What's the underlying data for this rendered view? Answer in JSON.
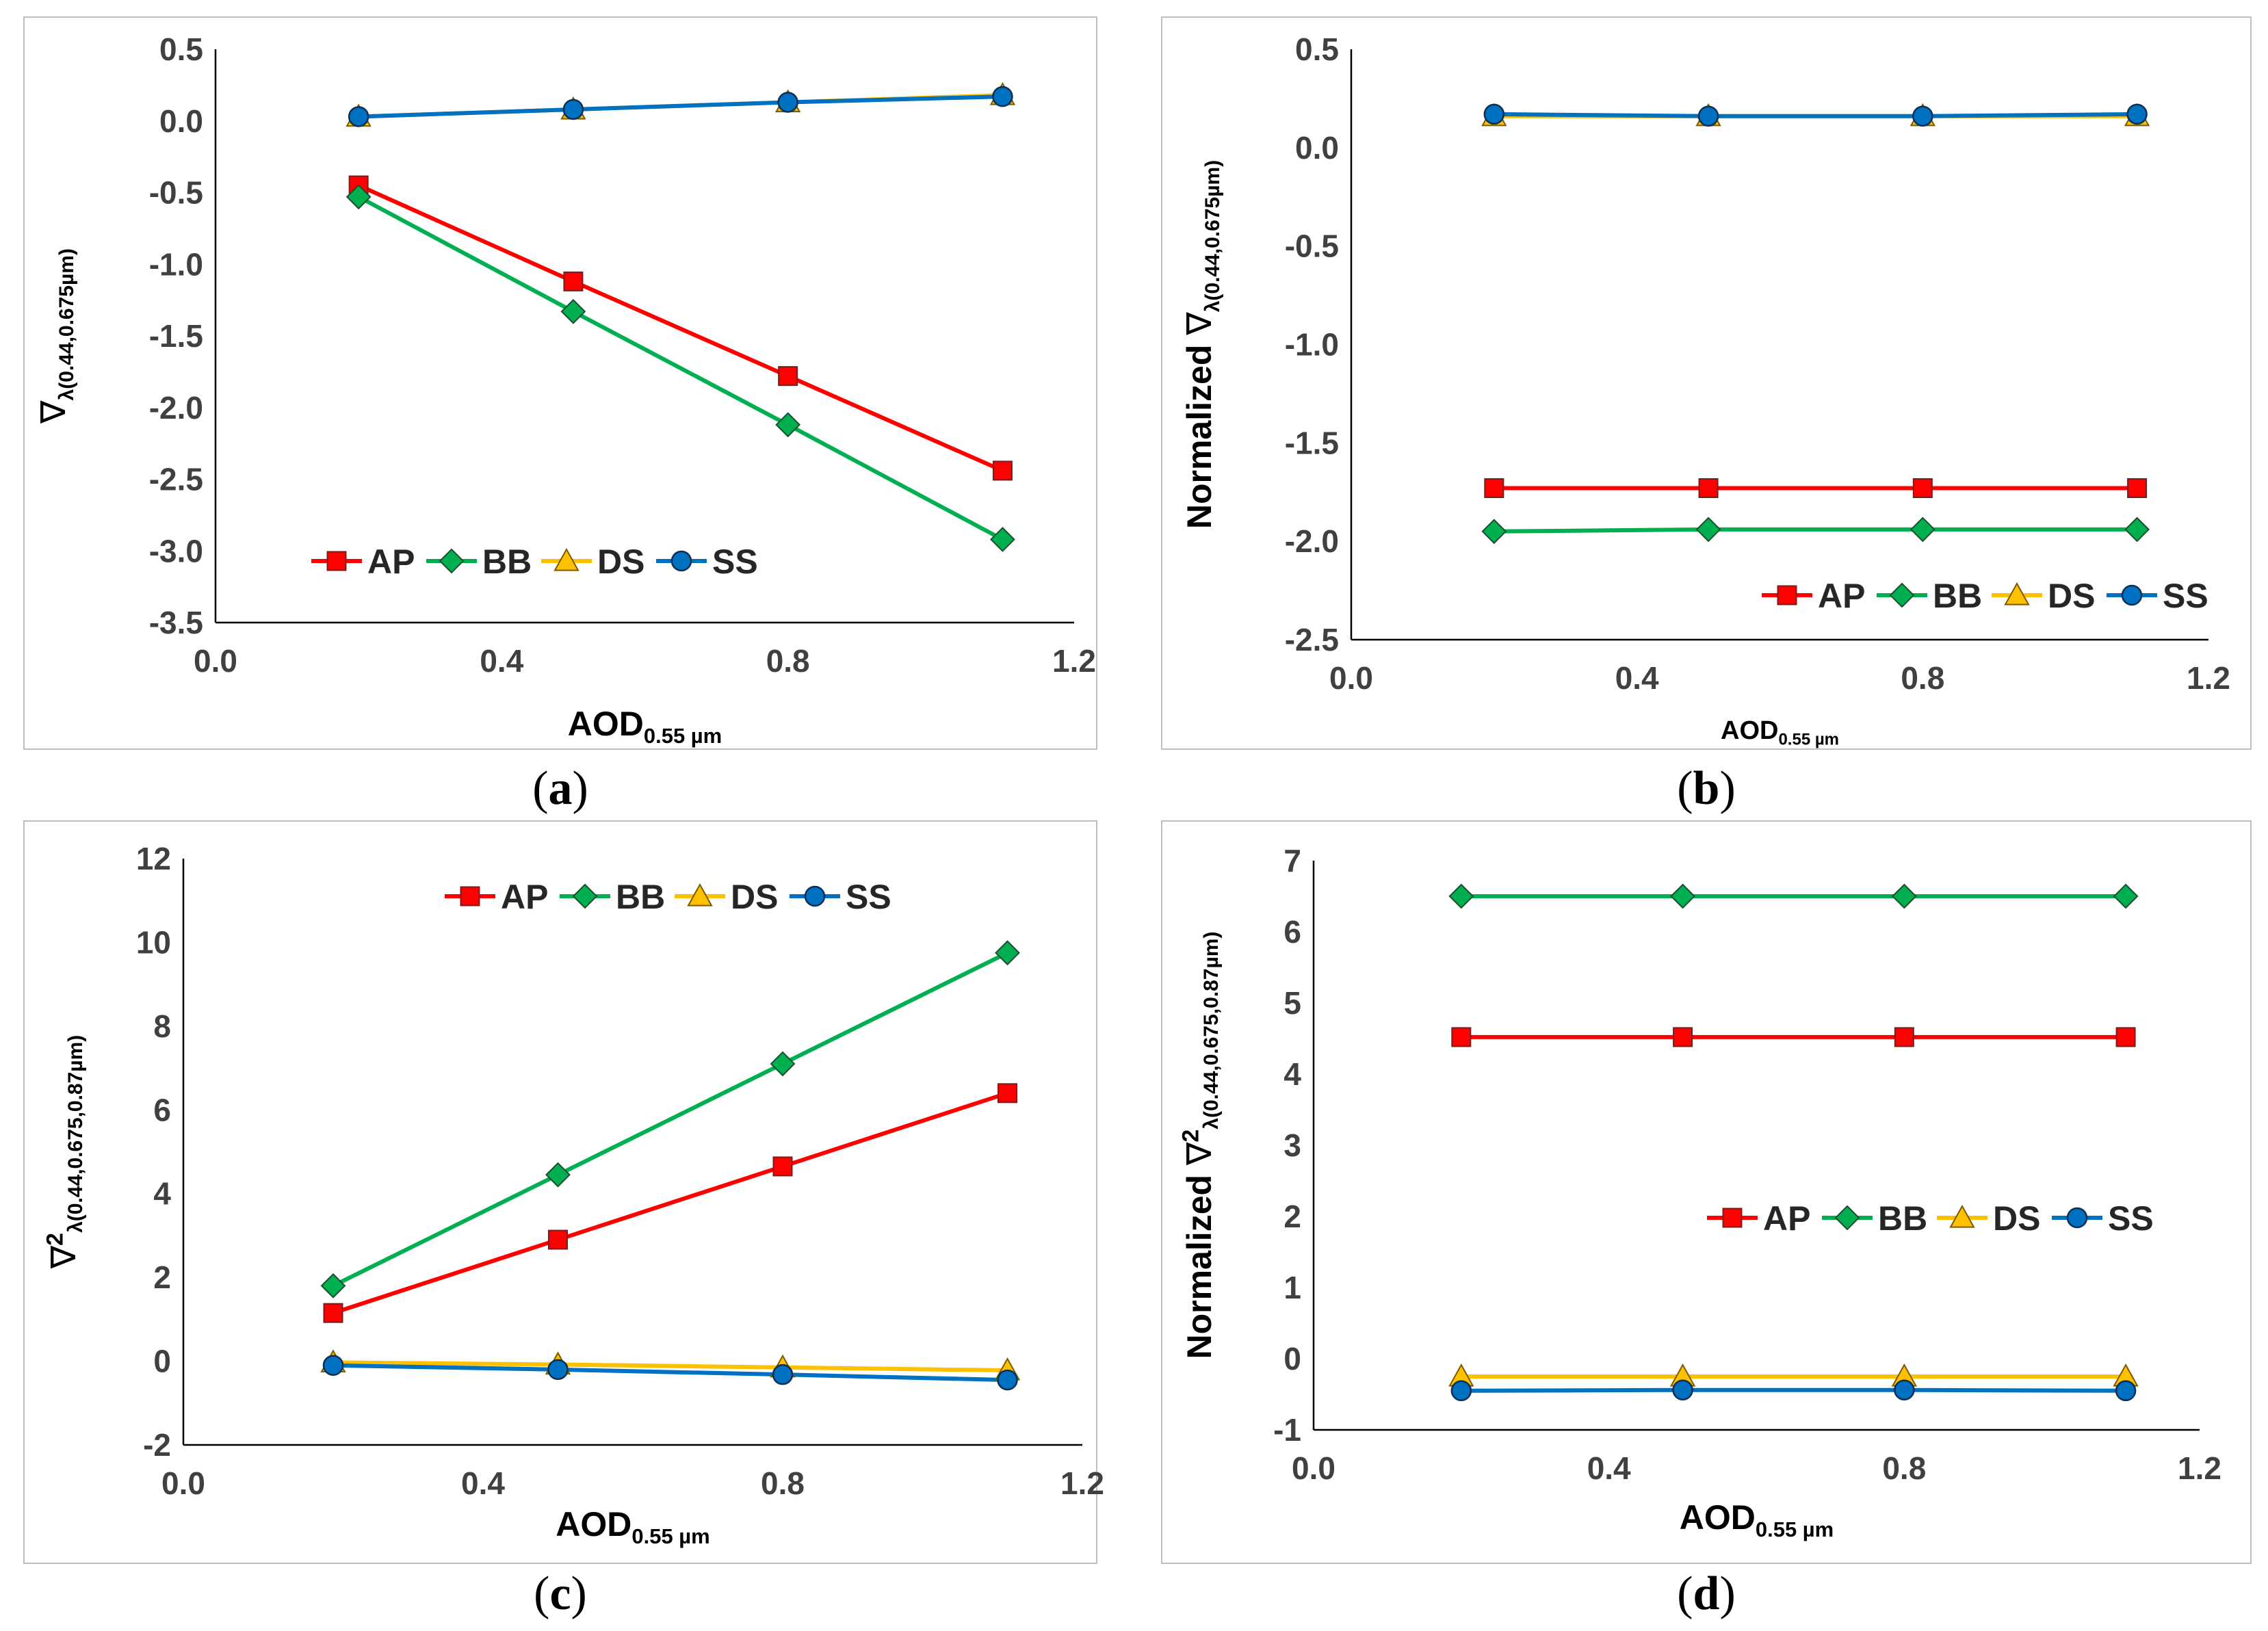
{
  "figure_captions": [
    "a",
    "b",
    "c",
    "d"
  ],
  "chart_data": [
    {
      "id": "a",
      "type": "line",
      "x": [
        0.2,
        0.5,
        0.8,
        1.1
      ],
      "xlim": [
        0.0,
        1.2
      ],
      "xticks": [
        "0.0",
        "0.4",
        "0.8",
        "1.2"
      ],
      "xtick_values": [
        0.0,
        0.4,
        0.8,
        1.2
      ],
      "ylim": [
        -3.5,
        0.5
      ],
      "yticks": [
        "0.5",
        "0.0",
        "-0.5",
        "-1.0",
        "-1.5",
        "-2.0",
        "-2.5",
        "-3.0",
        "-3.5"
      ],
      "ytick_values": [
        0.5,
        0.0,
        -0.5,
        -1.0,
        -1.5,
        -2.0,
        -2.5,
        -3.0,
        -3.5
      ],
      "xlabel": {
        "prefix": "",
        "main": "AOD",
        "sub": "0.55 µm"
      },
      "ylabel": {
        "prefix": "",
        "main": "∇",
        "sup": "",
        "sub": "λ(0.44,0.675µm)"
      },
      "legend": "lower-left",
      "series": [
        {
          "name": "AP",
          "color": "#FF0000",
          "marker": "square",
          "values": [
            -0.45,
            -1.12,
            -1.78,
            -2.44
          ]
        },
        {
          "name": "BB",
          "color": "#00B050",
          "marker": "diamond",
          "values": [
            -0.53,
            -1.33,
            -2.12,
            -2.92
          ]
        },
        {
          "name": "DS",
          "color": "#FFC000",
          "marker": "triangle",
          "values": [
            0.03,
            0.08,
            0.13,
            0.18
          ]
        },
        {
          "name": "SS",
          "color": "#0070C0",
          "marker": "circle",
          "values": [
            0.03,
            0.08,
            0.13,
            0.17
          ]
        }
      ]
    },
    {
      "id": "b",
      "type": "line",
      "x": [
        0.2,
        0.5,
        0.8,
        1.1
      ],
      "xlim": [
        0.0,
        1.2
      ],
      "xticks": [
        "0.0",
        "0.4",
        "0.8",
        "1.2"
      ],
      "xtick_values": [
        0.0,
        0.4,
        0.8,
        1.2
      ],
      "ylim": [
        -2.5,
        0.5
      ],
      "yticks": [
        "0.5",
        "0.0",
        "-0.5",
        "-1.0",
        "-1.5",
        "-2.0",
        "-2.5"
      ],
      "ytick_values": [
        0.5,
        0.0,
        -0.5,
        -1.0,
        -1.5,
        -2.0,
        -2.5
      ],
      "xlabel": {
        "prefix": "",
        "main": "AOD",
        "sub": "0.55 µm"
      },
      "ylabel": {
        "prefix": "Normalized ",
        "main": "∇",
        "sup": "",
        "sub": "λ(0.44,0.675µm)"
      },
      "legend": "bottom-right",
      "series": [
        {
          "name": "AP",
          "color": "#FF0000",
          "marker": "square",
          "values": [
            -1.73,
            -1.73,
            -1.73,
            -1.73
          ]
        },
        {
          "name": "BB",
          "color": "#00B050",
          "marker": "diamond",
          "values": [
            -1.95,
            -1.94,
            -1.94,
            -1.94
          ]
        },
        {
          "name": "DS",
          "color": "#FFC000",
          "marker": "triangle",
          "values": [
            0.16,
            0.16,
            0.16,
            0.16
          ]
        },
        {
          "name": "SS",
          "color": "#0070C0",
          "marker": "circle",
          "values": [
            0.17,
            0.16,
            0.16,
            0.17
          ]
        }
      ]
    },
    {
      "id": "c",
      "type": "line",
      "x": [
        0.2,
        0.5,
        0.8,
        1.1
      ],
      "xlim": [
        0.0,
        1.2
      ],
      "xticks": [
        "0.0",
        "0.4",
        "0.8",
        "1.2"
      ],
      "xtick_values": [
        0.0,
        0.4,
        0.8,
        1.2
      ],
      "ylim": [
        -2,
        12
      ],
      "yticks": [
        "12",
        "10",
        "8",
        "6",
        "4",
        "2",
        "0",
        "-2"
      ],
      "ytick_values": [
        12,
        10,
        8,
        6,
        4,
        2,
        0,
        -2
      ],
      "xlabel": {
        "prefix": "",
        "main": "AOD",
        "sub": "0.55 µm"
      },
      "ylabel": {
        "prefix": "",
        "main": "∇",
        "sup": "2",
        "sub": "λ(0.44,0.675,0.87µm)"
      },
      "legend": "top-center",
      "series": [
        {
          "name": "AP",
          "color": "#FF0000",
          "marker": "square",
          "values": [
            1.15,
            2.9,
            4.65,
            6.4
          ]
        },
        {
          "name": "BB",
          "color": "#00B050",
          "marker": "diamond",
          "values": [
            1.8,
            4.45,
            7.1,
            9.75
          ]
        },
        {
          "name": "DS",
          "color": "#FFC000",
          "marker": "triangle",
          "values": [
            -0.03,
            -0.08,
            -0.15,
            -0.22
          ]
        },
        {
          "name": "SS",
          "color": "#0070C0",
          "marker": "circle",
          "values": [
            -0.1,
            -0.2,
            -0.32,
            -0.45
          ]
        }
      ]
    },
    {
      "id": "d",
      "type": "line",
      "x": [
        0.2,
        0.5,
        0.8,
        1.1
      ],
      "xlim": [
        0.0,
        1.2
      ],
      "xticks": [
        "0.0",
        "0.4",
        "0.8",
        "1.2"
      ],
      "xtick_values": [
        0.0,
        0.4,
        0.8,
        1.2
      ],
      "ylim": [
        -1,
        7
      ],
      "yticks": [
        "7",
        "6",
        "5",
        "4",
        "3",
        "2",
        "1",
        "0",
        "-1"
      ],
      "ytick_values": [
        7,
        6,
        5,
        4,
        3,
        2,
        1,
        0,
        -1
      ],
      "xlabel": {
        "prefix": "",
        "main": "AOD",
        "sub": "0.55 µm"
      },
      "ylabel": {
        "prefix": "Normalized ",
        "main": "∇",
        "sup": "2",
        "sub": "λ(0.44,0.675,0.87µm)"
      },
      "legend": "center-right",
      "series": [
        {
          "name": "AP",
          "color": "#FF0000",
          "marker": "square",
          "values": [
            4.52,
            4.52,
            4.52,
            4.52
          ]
        },
        {
          "name": "BB",
          "color": "#00B050",
          "marker": "diamond",
          "values": [
            6.5,
            6.5,
            6.5,
            6.5
          ]
        },
        {
          "name": "DS",
          "color": "#FFC000",
          "marker": "triangle",
          "values": [
            -0.25,
            -0.25,
            -0.25,
            -0.25
          ]
        },
        {
          "name": "SS",
          "color": "#0070C0",
          "marker": "circle",
          "values": [
            -0.45,
            -0.44,
            -0.44,
            -0.45
          ]
        }
      ]
    }
  ]
}
